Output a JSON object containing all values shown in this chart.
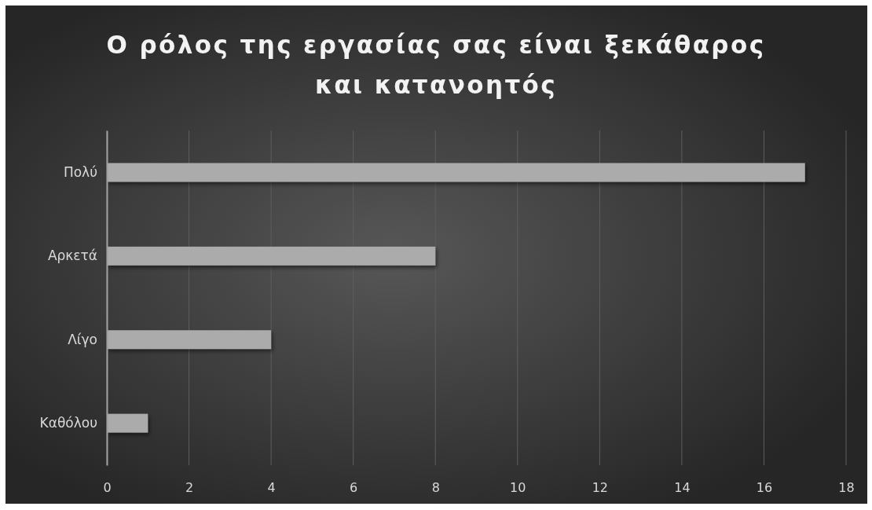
{
  "chart_data": {
    "type": "bar",
    "orientation": "horizontal",
    "title": "Ο ρόλος της εργασίας σας είναι ξεκάθαρος και κατανοητός",
    "categories": [
      "Πολύ",
      "Αρκετά",
      "Λίγο",
      "Καθόλου"
    ],
    "values": [
      17,
      8,
      4,
      1
    ],
    "color": "#ababab",
    "xlim": [
      0,
      18
    ],
    "xticks": [
      0,
      2,
      4,
      6,
      8,
      10,
      12,
      14,
      16,
      18
    ],
    "grid": "x"
  }
}
